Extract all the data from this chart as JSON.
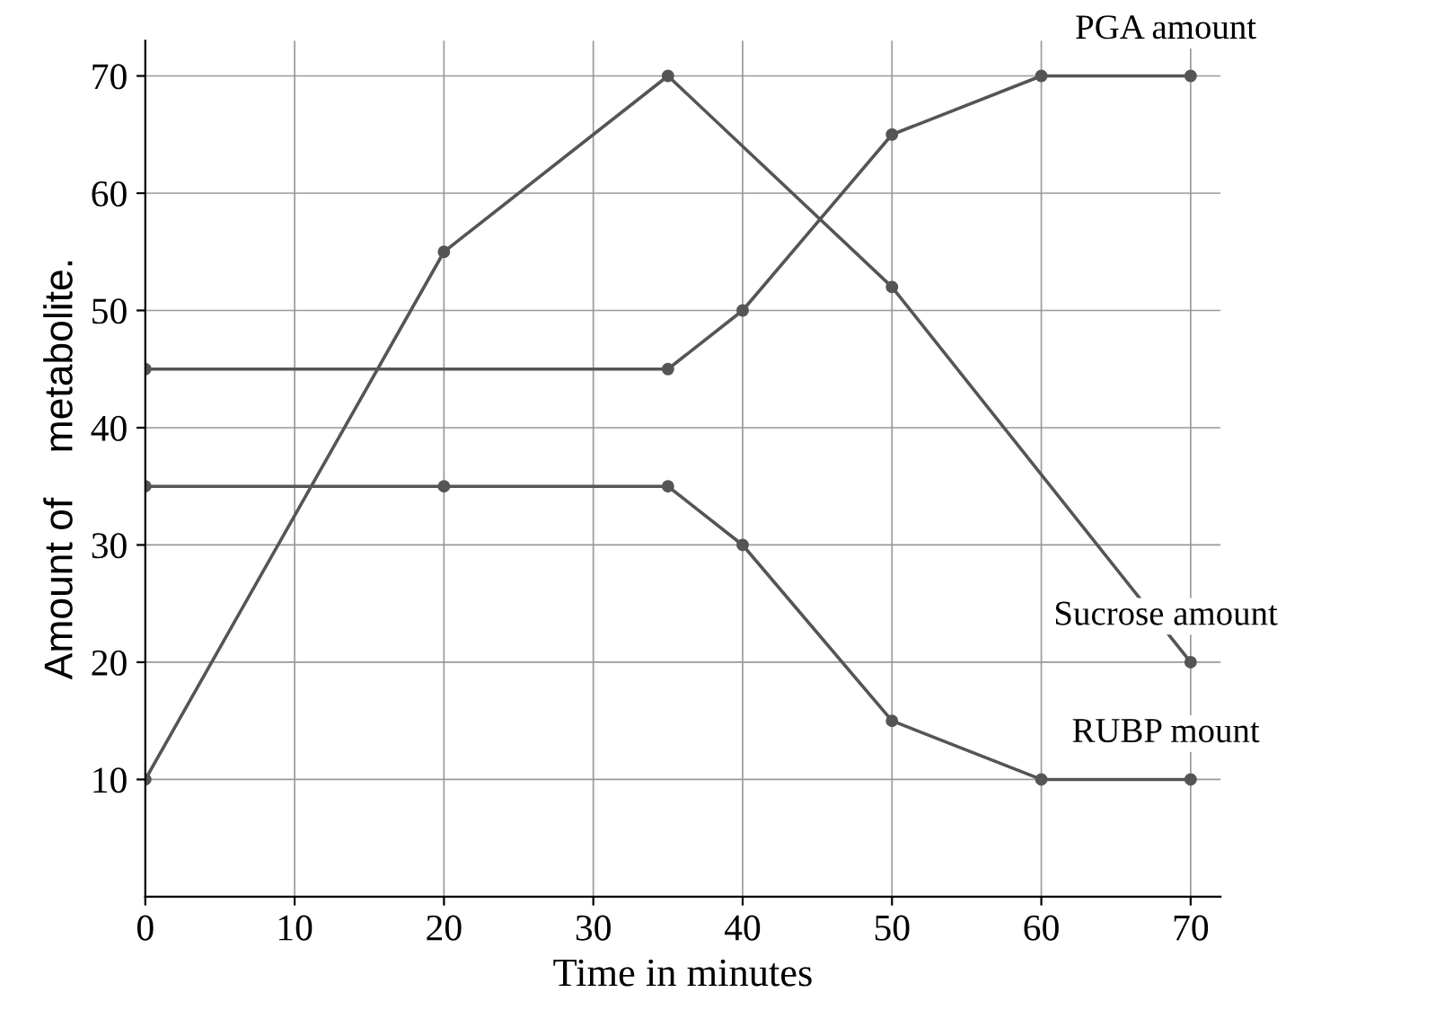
{
  "chart_data": {
    "type": "line",
    "xlabel": "Time in minutes",
    "ylabel": "Amount of    metabolite.",
    "xlim": [
      0,
      72
    ],
    "ylim": [
      0,
      73
    ],
    "xticks": [
      0,
      10,
      20,
      30,
      40,
      50,
      60,
      70
    ],
    "yticks": [
      10,
      20,
      30,
      40,
      50,
      60,
      70
    ],
    "grid": true,
    "marker": "circle",
    "line_style": "solid",
    "legend": false,
    "series": [
      {
        "name": "PGA amount",
        "color": "#555555",
        "x": [
          0,
          35,
          40,
          50,
          60,
          70
        ],
        "values": [
          45,
          45,
          50,
          65,
          70,
          70
        ]
      },
      {
        "name": "Sucrose amount",
        "color": "#555555",
        "x": [
          0,
          20,
          35,
          50,
          70
        ],
        "values": [
          10,
          55,
          70,
          52,
          20
        ]
      },
      {
        "name": "RUBP mount",
        "color": "#555555",
        "x": [
          0,
          20,
          35,
          40,
          50,
          60,
          70
        ],
        "values": [
          35,
          35,
          35,
          30,
          15,
          10,
          10
        ]
      }
    ]
  }
}
